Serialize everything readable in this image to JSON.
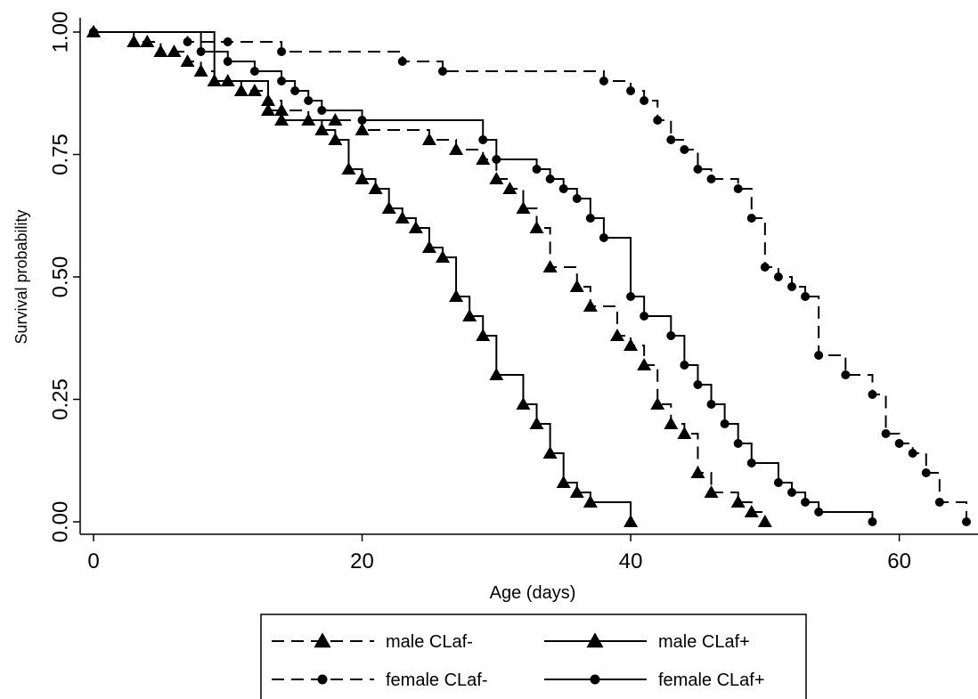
{
  "chart_data": {
    "type": "line",
    "step": true,
    "title": "",
    "xlabel": "Age (days)",
    "ylabel": "Survival probability",
    "xlim": [
      0,
      65
    ],
    "ylim": [
      0,
      1
    ],
    "xticks": [
      0,
      20,
      40,
      60
    ],
    "xtick_labels": [
      "0",
      "20",
      "40",
      "60"
    ],
    "yticks": [
      0,
      0.25,
      0.5,
      0.75,
      1
    ],
    "ytick_labels": [
      "0.00",
      "0.25",
      "0.50",
      "0.75",
      "1.00"
    ],
    "grid": false,
    "legend_position": "bottom",
    "series": [
      {
        "name": "male CLaf-",
        "line_style": "dashed",
        "marker": "triangle",
        "color": "#000000",
        "points": [
          [
            0,
            1.0
          ],
          [
            3,
            0.98
          ],
          [
            4,
            0.98
          ],
          [
            5,
            0.96
          ],
          [
            6,
            0.96
          ],
          [
            7,
            0.94
          ],
          [
            8,
            0.92
          ],
          [
            9,
            0.9
          ],
          [
            10,
            0.9
          ],
          [
            11,
            0.88
          ],
          [
            12,
            0.88
          ],
          [
            13,
            0.86
          ],
          [
            14,
            0.84
          ],
          [
            16,
            0.82
          ],
          [
            18,
            0.82
          ],
          [
            20,
            0.8
          ],
          [
            25,
            0.78
          ],
          [
            27,
            0.76
          ],
          [
            29,
            0.74
          ],
          [
            30,
            0.7
          ],
          [
            31,
            0.68
          ],
          [
            32,
            0.64
          ],
          [
            33,
            0.6
          ],
          [
            34,
            0.52
          ],
          [
            36,
            0.48
          ],
          [
            37,
            0.44
          ],
          [
            39,
            0.38
          ],
          [
            40,
            0.36
          ],
          [
            41,
            0.32
          ],
          [
            42,
            0.24
          ],
          [
            43,
            0.2
          ],
          [
            44,
            0.18
          ],
          [
            45,
            0.1
          ],
          [
            46,
            0.06
          ],
          [
            48,
            0.04
          ],
          [
            49,
            0.02
          ],
          [
            50,
            0.0
          ]
        ]
      },
      {
        "name": "male CLaf+",
        "line_style": "solid",
        "marker": "triangle",
        "color": "#000000",
        "points": [
          [
            0,
            1.0
          ],
          [
            9,
            0.9
          ],
          [
            13,
            0.84
          ],
          [
            14,
            0.82
          ],
          [
            17,
            0.8
          ],
          [
            18,
            0.78
          ],
          [
            19,
            0.72
          ],
          [
            20,
            0.7
          ],
          [
            21,
            0.68
          ],
          [
            22,
            0.64
          ],
          [
            23,
            0.62
          ],
          [
            24,
            0.6
          ],
          [
            25,
            0.56
          ],
          [
            26,
            0.54
          ],
          [
            27,
            0.46
          ],
          [
            28,
            0.42
          ],
          [
            29,
            0.38
          ],
          [
            30,
            0.3
          ],
          [
            32,
            0.24
          ],
          [
            33,
            0.2
          ],
          [
            34,
            0.14
          ],
          [
            35,
            0.08
          ],
          [
            36,
            0.06
          ],
          [
            37,
            0.04
          ],
          [
            40,
            0.0
          ]
        ]
      },
      {
        "name": "female CLaf-",
        "line_style": "dashed",
        "marker": "circle",
        "color": "#000000",
        "points": [
          [
            0,
            1.0
          ],
          [
            7,
            0.98
          ],
          [
            10,
            0.98
          ],
          [
            14,
            0.96
          ],
          [
            23,
            0.94
          ],
          [
            26,
            0.92
          ],
          [
            38,
            0.9
          ],
          [
            40,
            0.88
          ],
          [
            41,
            0.86
          ],
          [
            42,
            0.82
          ],
          [
            43,
            0.78
          ],
          [
            44,
            0.76
          ],
          [
            45,
            0.72
          ],
          [
            46,
            0.7
          ],
          [
            48,
            0.68
          ],
          [
            49,
            0.62
          ],
          [
            50,
            0.52
          ],
          [
            51,
            0.5
          ],
          [
            52,
            0.48
          ],
          [
            53,
            0.46
          ],
          [
            54,
            0.34
          ],
          [
            56,
            0.3
          ],
          [
            58,
            0.26
          ],
          [
            59,
            0.18
          ],
          [
            60,
            0.16
          ],
          [
            61,
            0.14
          ],
          [
            62,
            0.1
          ],
          [
            63,
            0.04
          ],
          [
            65,
            0.0
          ]
        ]
      },
      {
        "name": "female CLaf+",
        "line_style": "solid",
        "marker": "circle",
        "color": "#000000",
        "points": [
          [
            0,
            1.0
          ],
          [
            8,
            0.96
          ],
          [
            10,
            0.94
          ],
          [
            12,
            0.92
          ],
          [
            14,
            0.9
          ],
          [
            15,
            0.88
          ],
          [
            16,
            0.86
          ],
          [
            17,
            0.84
          ],
          [
            20,
            0.82
          ],
          [
            29,
            0.78
          ],
          [
            30,
            0.74
          ],
          [
            33,
            0.72
          ],
          [
            34,
            0.7
          ],
          [
            35,
            0.68
          ],
          [
            36,
            0.66
          ],
          [
            37,
            0.62
          ],
          [
            38,
            0.58
          ],
          [
            40,
            0.46
          ],
          [
            41,
            0.42
          ],
          [
            43,
            0.38
          ],
          [
            44,
            0.32
          ],
          [
            45,
            0.28
          ],
          [
            46,
            0.24
          ],
          [
            47,
            0.2
          ],
          [
            48,
            0.16
          ],
          [
            49,
            0.12
          ],
          [
            51,
            0.08
          ],
          [
            52,
            0.06
          ],
          [
            53,
            0.04
          ],
          [
            54,
            0.02
          ],
          [
            58,
            0.0
          ]
        ]
      }
    ]
  }
}
